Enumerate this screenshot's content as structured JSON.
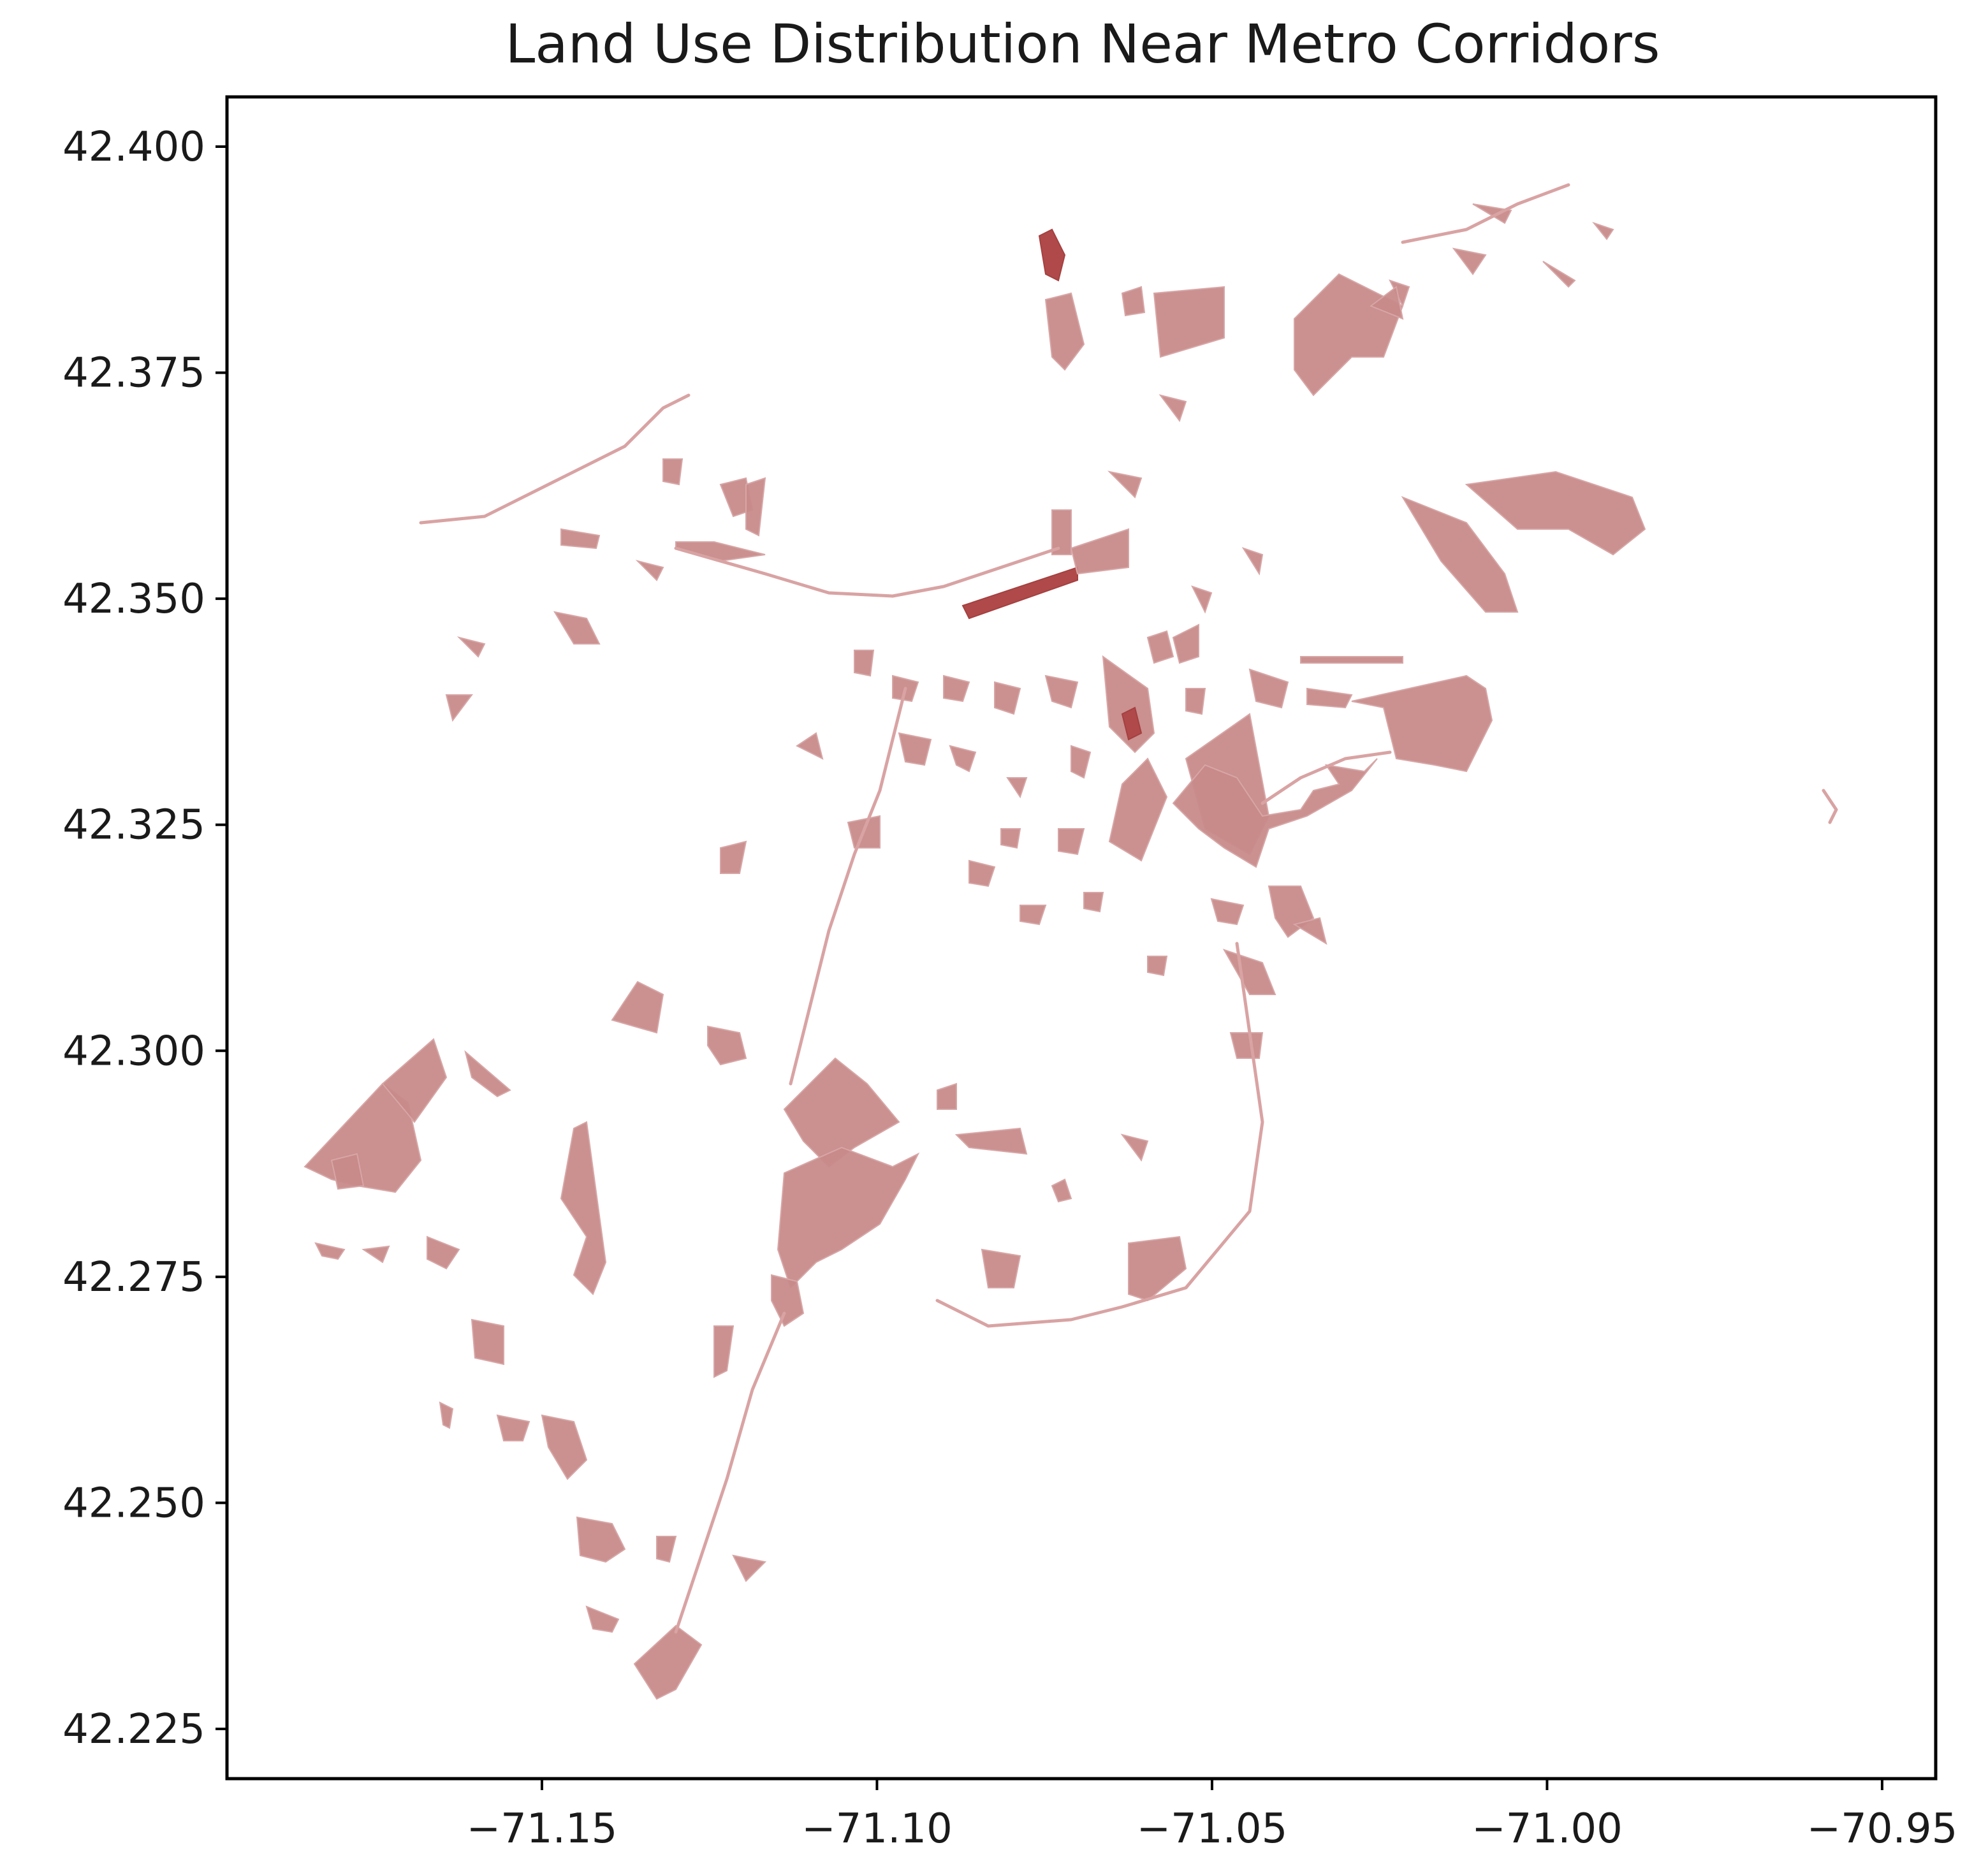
{
  "map": {
    "title": "Land Use Distribution Near Metro Corridors",
    "x_axis": {
      "ticks": [
        "−71.15",
        "−71.10",
        "−71.05",
        "−71.00",
        "−70.95"
      ],
      "tick_values": [
        -71.15,
        -71.1,
        -71.05,
        -71.0,
        -70.95
      ],
      "range": [
        -71.197,
        -70.942
      ]
    },
    "y_axis": {
      "ticks": [
        "42.400",
        "42.375",
        "42.350",
        "42.325",
        "42.300",
        "42.275",
        "42.250",
        "42.225"
      ],
      "tick_values": [
        42.4,
        42.375,
        42.35,
        42.325,
        42.3,
        42.275,
        42.25,
        42.225
      ],
      "range": [
        42.2195,
        42.4055
      ]
    },
    "colors": {
      "parcel_fill": "#c88a8a",
      "parcel_dark": "#b04a4a",
      "axes": "#000000"
    }
  }
}
